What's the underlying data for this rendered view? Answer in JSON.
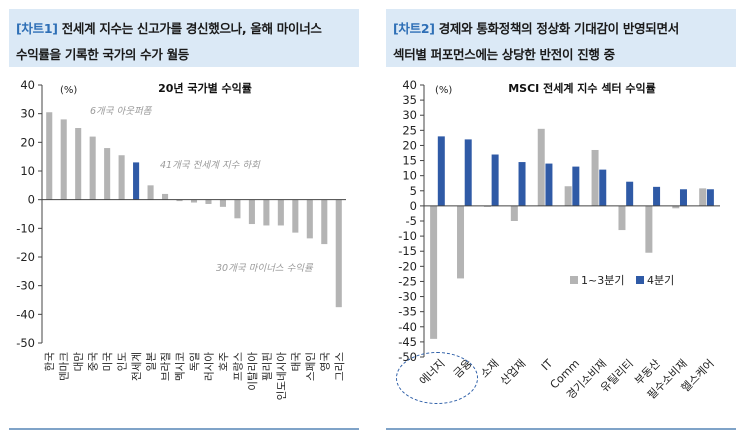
{
  "left": {
    "tag": "[차트1]",
    "heading_line1": "전세계 지수는 신고가를 경신했으나, 올해 마이너스",
    "heading_line2": "수익률을 기록한 국가의 수가 월등",
    "chart_title": "20년 국가별 수익률",
    "unit": "(%)",
    "annotations": [
      "6개국 아웃퍼폼",
      "41개국 전세계 지수 하회",
      "30개국 마이너스 수익률"
    ]
  },
  "right": {
    "tag": "[차트2]",
    "heading_line1": "경제와 통화정책의 정상화 기대감이 반영되면서",
    "heading_line2": "섹터별 퍼포먼스에는 상당한 반전이 진행 중",
    "chart_title": "MSCI 전세계 지수 섹터 수익률",
    "unit": "(%)"
  },
  "colors": {
    "gray": "#b4b4b4",
    "blue": "#2f5aa6",
    "header_bg": "#dbe9f6",
    "tag": "#2e6fb6"
  },
  "chart_data": [
    {
      "type": "bar",
      "title": "20년 국가별 수익률",
      "ylabel": "(%)",
      "ylim": [
        -50,
        40
      ],
      "yticks": [
        40,
        30,
        20,
        10,
        0,
        -10,
        -20,
        -30,
        -40,
        -50
      ],
      "categories": [
        "한국",
        "덴마크",
        "대만",
        "중국",
        "미국",
        "인도",
        "전세계",
        "일본",
        "브라질",
        "멕시코",
        "독일",
        "러시아",
        "호주",
        "프랑스",
        "이탈리아",
        "필리핀",
        "인도네시아",
        "태국",
        "스페인",
        "영국",
        "그리스"
      ],
      "values": [
        30.5,
        28,
        25,
        22,
        18,
        15.5,
        13,
        5,
        2,
        -0.5,
        -1,
        -1.5,
        -2.5,
        -6.5,
        -8.5,
        -9,
        -9,
        -11.5,
        -13.5,
        -15.5,
        -37.5
      ],
      "highlight_index": 6,
      "legend": "none"
    },
    {
      "type": "bar",
      "title": "MSCI 전세계 지수 섹터 수익률",
      "ylabel": "(%)",
      "ylim": [
        -50,
        40
      ],
      "yticks": [
        40,
        35,
        30,
        25,
        20,
        15,
        10,
        5,
        0,
        -5,
        -10,
        -15,
        -20,
        -25,
        -30,
        -35,
        -40,
        -45,
        -50
      ],
      "categories": [
        "에너지",
        "금융",
        "소재",
        "산업재",
        "IT",
        "Comm",
        "경기소비재",
        "유틸리티",
        "부동산",
        "필수소비재",
        "헬스케어"
      ],
      "series": [
        {
          "name": "1~3분기",
          "values": [
            -44,
            -24,
            0,
            -5,
            25.5,
            6.5,
            18.5,
            -8,
            -15.5,
            -0.8,
            5.8
          ]
        },
        {
          "name": "4분기",
          "values": [
            23,
            22,
            17,
            14.5,
            14,
            13,
            12,
            8,
            6.3,
            5.5,
            5.5
          ]
        }
      ],
      "legend": "bottom-right",
      "circled_categories": [
        "에너지",
        "금융"
      ]
    }
  ]
}
